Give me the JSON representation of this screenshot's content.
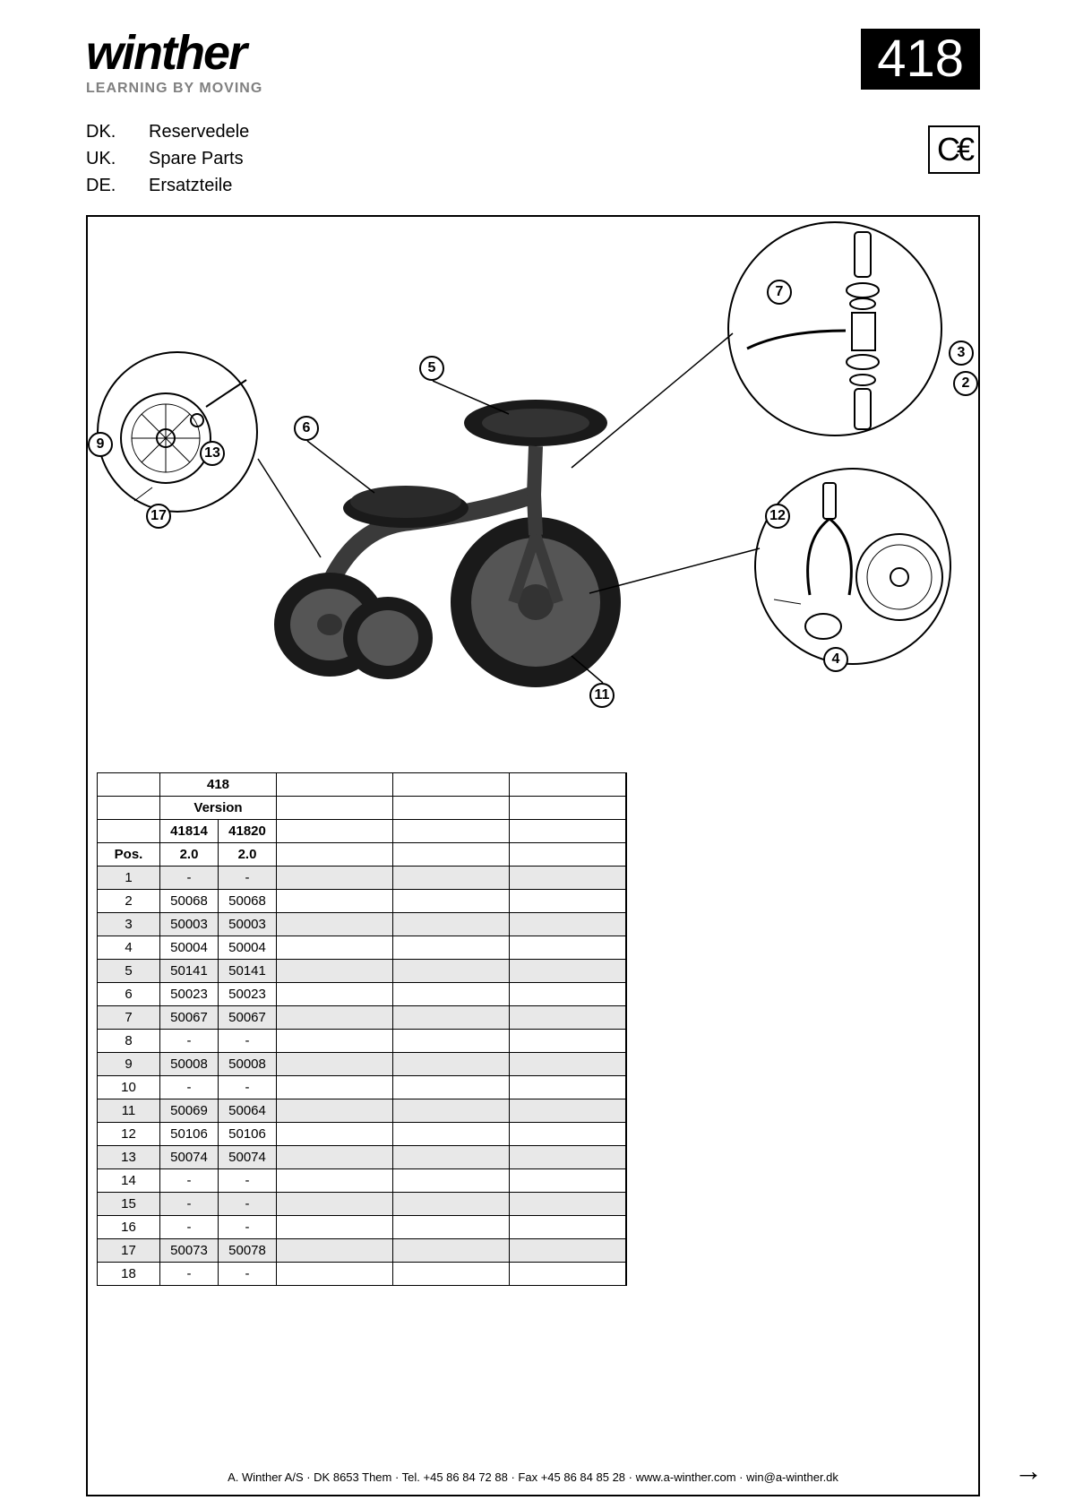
{
  "brand": {
    "name": "winther",
    "tagline": "LEARNING BY MOVING"
  },
  "model_number": "418",
  "ce_mark": "C€",
  "languages": [
    {
      "code": "DK.",
      "label": "Reservedele"
    },
    {
      "code": "UK.",
      "label": "Spare Parts"
    },
    {
      "code": "DE.",
      "label": "Ersatzteile"
    }
  ],
  "callouts": [
    "2",
    "3",
    "4",
    "5",
    "6",
    "7",
    "9",
    "11",
    "12",
    "13",
    "17"
  ],
  "table": {
    "model_header": "418",
    "version_label": "Version",
    "pos_label": "Pos.",
    "versions": [
      "41814",
      "41820"
    ],
    "version_vals": [
      "2.0",
      "2.0"
    ],
    "rows": [
      {
        "pos": "1",
        "a": "-",
        "b": "-"
      },
      {
        "pos": "2",
        "a": "50068",
        "b": "50068"
      },
      {
        "pos": "3",
        "a": "50003",
        "b": "50003"
      },
      {
        "pos": "4",
        "a": "50004",
        "b": "50004"
      },
      {
        "pos": "5",
        "a": "50141",
        "b": "50141"
      },
      {
        "pos": "6",
        "a": "50023",
        "b": "50023"
      },
      {
        "pos": "7",
        "a": "50067",
        "b": "50067"
      },
      {
        "pos": "8",
        "a": "-",
        "b": "-"
      },
      {
        "pos": "9",
        "a": "50008",
        "b": "50008"
      },
      {
        "pos": "10",
        "a": "-",
        "b": "-"
      },
      {
        "pos": "11",
        "a": "50069",
        "b": "50064"
      },
      {
        "pos": "12",
        "a": "50106",
        "b": "50106"
      },
      {
        "pos": "13",
        "a": "50074",
        "b": "50074"
      },
      {
        "pos": "14",
        "a": "-",
        "b": "-"
      },
      {
        "pos": "15",
        "a": "-",
        "b": "-"
      },
      {
        "pos": "16",
        "a": "-",
        "b": "-"
      },
      {
        "pos": "17",
        "a": "50073",
        "b": "50078"
      },
      {
        "pos": "18",
        "a": "-",
        "b": "-"
      }
    ]
  },
  "footer": "A. Winther A/S · DK 8653 Them · Tel. +45 86 84 72 88 · Fax +45 86 84 85 28 · www.a-winther.com · win@a-winther.dk",
  "colors": {
    "text": "#000000",
    "muted": "#808080",
    "row_alt": "#e8e8e8",
    "bg": "#ffffff"
  }
}
